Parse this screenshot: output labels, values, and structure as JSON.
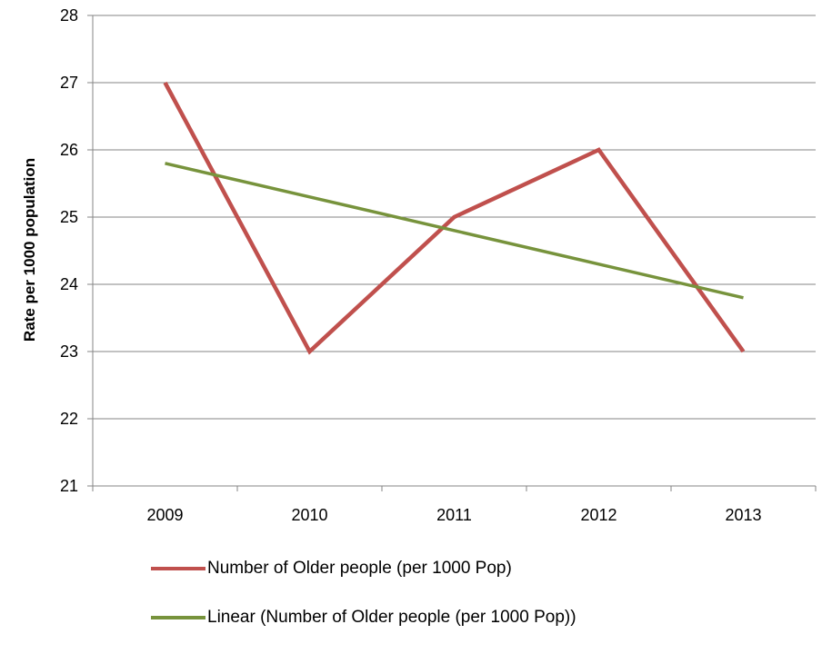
{
  "chart_data": {
    "type": "line",
    "title": "",
    "xlabel": "",
    "ylabel": "Rate per 1000 population",
    "categories": [
      "2009",
      "2010",
      "2011",
      "2012",
      "2013"
    ],
    "ylim": [
      21,
      28
    ],
    "yticks": [
      "21",
      "22",
      "23",
      "24",
      "25",
      "26",
      "27",
      "28"
    ],
    "grid": "horizontal",
    "legend_position": "bottom",
    "series": [
      {
        "name": "Number of Older people (per 1000 Pop)",
        "values": [
          27,
          23,
          25,
          26,
          23
        ],
        "color": "#C0504D"
      },
      {
        "name": "Linear (Number of Older people (per 1000 Pop))",
        "values": [
          25.8,
          25.3,
          24.8,
          24.3,
          23.8
        ],
        "color": "#77933C"
      }
    ]
  }
}
